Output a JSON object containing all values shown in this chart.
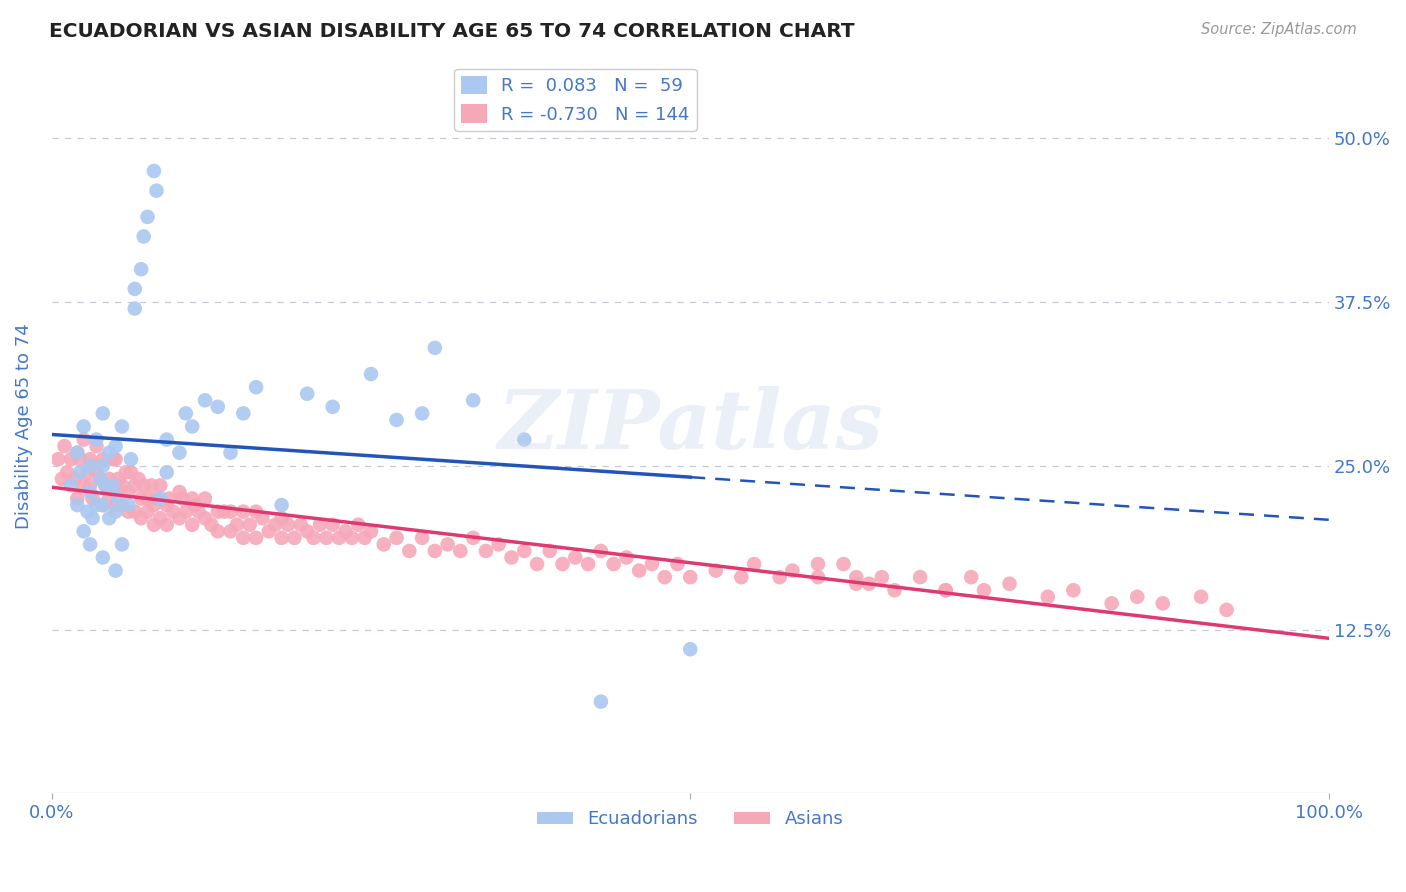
{
  "title": "ECUADORIAN VS ASIAN DISABILITY AGE 65 TO 74 CORRELATION CHART",
  "source": "Source: ZipAtlas.com",
  "ylabel": "Disability Age 65 to 74",
  "watermark": "ZIPatlas",
  "ecuadorian_R": 0.083,
  "ecuadorian_N": 59,
  "asian_R": -0.73,
  "asian_N": 144,
  "xlim": [
    0.0,
    1.0
  ],
  "ylim": [
    0.0,
    0.56
  ],
  "background_color": "#ffffff",
  "grid_color": "#c8c8d8",
  "ecuadorian_color": "#aac8f0",
  "asian_color": "#f5a8b8",
  "ecuadorian_line_color": "#2255bb",
  "asian_line_color": "#e03870",
  "title_color": "#222222",
  "axis_color": "#4477cc",
  "ec_x": [
    0.015,
    0.02,
    0.02,
    0.022,
    0.025,
    0.025,
    0.028,
    0.03,
    0.03,
    0.03,
    0.032,
    0.035,
    0.035,
    0.038,
    0.04,
    0.04,
    0.04,
    0.04,
    0.042,
    0.045,
    0.045,
    0.048,
    0.05,
    0.05,
    0.05,
    0.052,
    0.055,
    0.055,
    0.06,
    0.062,
    0.065,
    0.065,
    0.07,
    0.072,
    0.075,
    0.08,
    0.082,
    0.085,
    0.09,
    0.09,
    0.1,
    0.105,
    0.11,
    0.12,
    0.13,
    0.14,
    0.15,
    0.16,
    0.18,
    0.2,
    0.22,
    0.25,
    0.27,
    0.29,
    0.3,
    0.33,
    0.37,
    0.43,
    0.5
  ],
  "ec_y": [
    0.235,
    0.22,
    0.26,
    0.245,
    0.2,
    0.28,
    0.215,
    0.19,
    0.23,
    0.25,
    0.21,
    0.22,
    0.27,
    0.24,
    0.18,
    0.22,
    0.25,
    0.29,
    0.235,
    0.21,
    0.26,
    0.235,
    0.17,
    0.215,
    0.265,
    0.225,
    0.19,
    0.28,
    0.22,
    0.255,
    0.385,
    0.37,
    0.4,
    0.425,
    0.44,
    0.475,
    0.46,
    0.225,
    0.245,
    0.27,
    0.26,
    0.29,
    0.28,
    0.3,
    0.295,
    0.26,
    0.29,
    0.31,
    0.22,
    0.305,
    0.295,
    0.32,
    0.285,
    0.29,
    0.34,
    0.3,
    0.27,
    0.07,
    0.11
  ],
  "as_x": [
    0.005,
    0.008,
    0.01,
    0.012,
    0.015,
    0.018,
    0.02,
    0.02,
    0.022,
    0.025,
    0.025,
    0.028,
    0.03,
    0.03,
    0.032,
    0.035,
    0.035,
    0.038,
    0.04,
    0.04,
    0.042,
    0.045,
    0.045,
    0.048,
    0.05,
    0.05,
    0.05,
    0.052,
    0.055,
    0.055,
    0.058,
    0.06,
    0.06,
    0.062,
    0.065,
    0.065,
    0.068,
    0.07,
    0.07,
    0.072,
    0.075,
    0.075,
    0.078,
    0.08,
    0.08,
    0.082,
    0.085,
    0.085,
    0.09,
    0.09,
    0.092,
    0.095,
    0.1,
    0.1,
    0.102,
    0.105,
    0.11,
    0.11,
    0.112,
    0.115,
    0.12,
    0.12,
    0.125,
    0.13,
    0.13,
    0.135,
    0.14,
    0.14,
    0.145,
    0.15,
    0.15,
    0.155,
    0.16,
    0.16,
    0.165,
    0.17,
    0.175,
    0.18,
    0.18,
    0.185,
    0.19,
    0.195,
    0.2,
    0.205,
    0.21,
    0.215,
    0.22,
    0.225,
    0.23,
    0.235,
    0.24,
    0.245,
    0.25,
    0.26,
    0.27,
    0.28,
    0.29,
    0.3,
    0.31,
    0.32,
    0.33,
    0.34,
    0.35,
    0.36,
    0.37,
    0.38,
    0.39,
    0.4,
    0.41,
    0.42,
    0.43,
    0.44,
    0.45,
    0.46,
    0.47,
    0.48,
    0.49,
    0.5,
    0.52,
    0.54,
    0.55,
    0.57,
    0.58,
    0.6,
    0.62,
    0.63,
    0.65,
    0.66,
    0.68,
    0.7,
    0.72,
    0.73,
    0.75,
    0.78,
    0.8,
    0.83,
    0.85,
    0.87,
    0.9,
    0.92,
    0.6,
    0.63,
    0.64,
    0.7
  ],
  "as_y": [
    0.255,
    0.24,
    0.265,
    0.245,
    0.255,
    0.24,
    0.26,
    0.225,
    0.255,
    0.235,
    0.27,
    0.245,
    0.235,
    0.255,
    0.225,
    0.245,
    0.265,
    0.24,
    0.22,
    0.255,
    0.235,
    0.24,
    0.225,
    0.255,
    0.235,
    0.22,
    0.255,
    0.24,
    0.235,
    0.22,
    0.245,
    0.23,
    0.215,
    0.245,
    0.235,
    0.215,
    0.24,
    0.225,
    0.21,
    0.235,
    0.225,
    0.215,
    0.235,
    0.22,
    0.205,
    0.225,
    0.21,
    0.235,
    0.22,
    0.205,
    0.225,
    0.215,
    0.23,
    0.21,
    0.225,
    0.215,
    0.225,
    0.205,
    0.22,
    0.215,
    0.21,
    0.225,
    0.205,
    0.215,
    0.2,
    0.215,
    0.2,
    0.215,
    0.205,
    0.215,
    0.195,
    0.205,
    0.215,
    0.195,
    0.21,
    0.2,
    0.205,
    0.21,
    0.195,
    0.205,
    0.195,
    0.205,
    0.2,
    0.195,
    0.205,
    0.195,
    0.205,
    0.195,
    0.2,
    0.195,
    0.205,
    0.195,
    0.2,
    0.19,
    0.195,
    0.185,
    0.195,
    0.185,
    0.19,
    0.185,
    0.195,
    0.185,
    0.19,
    0.18,
    0.185,
    0.175,
    0.185,
    0.175,
    0.18,
    0.175,
    0.185,
    0.175,
    0.18,
    0.17,
    0.175,
    0.165,
    0.175,
    0.165,
    0.17,
    0.165,
    0.175,
    0.165,
    0.17,
    0.165,
    0.175,
    0.16,
    0.165,
    0.155,
    0.165,
    0.155,
    0.165,
    0.155,
    0.16,
    0.15,
    0.155,
    0.145,
    0.15,
    0.145,
    0.15,
    0.14,
    0.175,
    0.165,
    0.16,
    0.155
  ]
}
